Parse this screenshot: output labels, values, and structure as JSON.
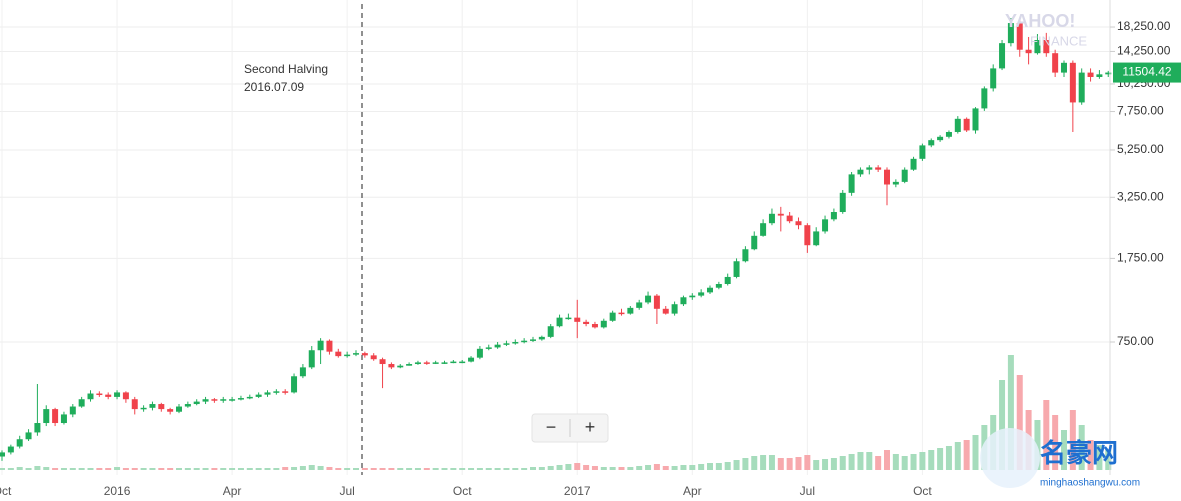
{
  "chart_data": {
    "type": "candlestick",
    "categories": [
      "Oct",
      null,
      null,
      null,
      null,
      null,
      null,
      null,
      null,
      null,
      null,
      null,
      null,
      "2016",
      null,
      null,
      null,
      null,
      null,
      null,
      null,
      null,
      null,
      null,
      null,
      null,
      "Apr",
      null,
      null,
      null,
      null,
      null,
      null,
      null,
      null,
      null,
      null,
      null,
      null,
      "Jul",
      null,
      null,
      null,
      null,
      null,
      null,
      null,
      null,
      null,
      null,
      null,
      null,
      "Oct",
      null,
      null,
      null,
      null,
      null,
      null,
      null,
      null,
      null,
      null,
      null,
      null,
      "2017",
      null,
      null,
      null,
      null,
      null,
      null,
      null,
      null,
      null,
      null,
      null,
      null,
      "Apr",
      null,
      null,
      null,
      null,
      null,
      null,
      null,
      null,
      null,
      null,
      null,
      null,
      "Jul",
      null,
      null,
      null,
      null,
      null,
      null,
      null,
      null,
      null,
      null,
      null,
      null,
      "Oct",
      null,
      null,
      null,
      null,
      null,
      null,
      null,
      null,
      null,
      null,
      null,
      null,
      null,
      null,
      null,
      null,
      null,
      null,
      null,
      null,
      null
    ],
    "open": [
      235,
      245,
      260,
      280,
      300,
      330,
      380,
      330,
      360,
      390,
      420,
      445,
      440,
      430,
      450,
      420,
      380,
      385,
      400,
      380,
      370,
      390,
      400,
      410,
      420,
      415,
      420,
      420,
      425,
      430,
      440,
      450,
      455,
      450,
      530,
      580,
      690,
      760,
      680,
      650,
      660,
      670,
      655,
      630,
      600,
      580,
      590,
      600,
      610,
      605,
      610,
      610,
      615,
      615,
      640,
      700,
      710,
      730,
      740,
      750,
      760,
      770,
      790,
      880,
      960,
      960,
      920,
      900,
      870,
      930,
      1010,
      1000,
      1060,
      1120,
      1200,
      1050,
      1000,
      1100,
      1180,
      1200,
      1240,
      1300,
      1350,
      1450,
      1700,
      1920,
      2200,
      2500,
      2750,
      2700,
      2550,
      2450,
      2000,
      2300,
      2600,
      2800,
      3400,
      4100,
      4300,
      4400,
      4300,
      3700,
      3800,
      4300,
      4800,
      5500,
      5800,
      6000,
      6300,
      7200,
      6400,
      8000,
      9800,
      12000,
      15500,
      19000,
      14500,
      14000,
      16000,
      14000,
      11500,
      12700,
      8500,
      11500,
      11000,
      11300
    ],
    "high": [
      250,
      265,
      290,
      310,
      490,
      395,
      385,
      370,
      400,
      430,
      460,
      455,
      450,
      460,
      455,
      430,
      395,
      410,
      405,
      385,
      400,
      410,
      420,
      430,
      425,
      430,
      430,
      435,
      440,
      450,
      460,
      465,
      465,
      545,
      600,
      720,
      780,
      770,
      700,
      680,
      690,
      680,
      670,
      640,
      610,
      600,
      610,
      620,
      620,
      620,
      620,
      625,
      625,
      650,
      720,
      730,
      750,
      760,
      770,
      780,
      790,
      800,
      900,
      990,
      1000,
      1150,
      940,
      920,
      950,
      1030,
      1050,
      1080,
      1150,
      1250,
      1220,
      1080,
      1130,
      1200,
      1230,
      1280,
      1330,
      1380,
      1500,
      1750,
      1980,
      2300,
      2600,
      2900,
      2950,
      2800,
      2650,
      2500,
      2400,
      2700,
      2900,
      3500,
      4200,
      4400,
      4500,
      4500,
      4400,
      3900,
      4400,
      4900,
      5600,
      5900,
      6100,
      6400,
      7400,
      7300,
      8100,
      10000,
      12500,
      16000,
      20000,
      19500,
      16500,
      17000,
      17200,
      14500,
      13000,
      13000,
      12000,
      12000,
      11800,
      11700
    ],
    "low": [
      225,
      240,
      255,
      275,
      290,
      320,
      320,
      325,
      350,
      385,
      410,
      430,
      420,
      420,
      405,
      360,
      370,
      375,
      370,
      360,
      365,
      385,
      395,
      400,
      405,
      405,
      410,
      415,
      420,
      425,
      430,
      440,
      440,
      445,
      520,
      570,
      600,
      660,
      640,
      640,
      650,
      640,
      620,
      470,
      570,
      575,
      590,
      595,
      595,
      600,
      600,
      605,
      605,
      610,
      630,
      690,
      700,
      720,
      730,
      740,
      750,
      760,
      780,
      870,
      940,
      780,
      880,
      860,
      860,
      920,
      980,
      990,
      1040,
      1100,
      900,
      990,
      980,
      1080,
      1150,
      1180,
      1220,
      1280,
      1330,
      1430,
      1680,
      1900,
      2180,
      2450,
      2300,
      2500,
      2350,
      1850,
      1980,
      2250,
      2550,
      2750,
      3300,
      4000,
      4100,
      4200,
      3000,
      3600,
      3750,
      4250,
      4700,
      5400,
      5700,
      5900,
      6200,
      6300,
      6200,
      7800,
      9500,
      11800,
      15000,
      13500,
      12500,
      13800,
      13500,
      11000,
      11000,
      6300,
      8300,
      10500,
      10800,
      11000
    ],
    "close": [
      245,
      260,
      280,
      300,
      330,
      380,
      330,
      360,
      390,
      420,
      445,
      440,
      430,
      450,
      420,
      380,
      385,
      400,
      380,
      370,
      390,
      400,
      410,
      420,
      415,
      420,
      420,
      425,
      430,
      440,
      450,
      455,
      450,
      530,
      580,
      690,
      760,
      680,
      650,
      660,
      670,
      655,
      630,
      600,
      580,
      590,
      600,
      610,
      605,
      610,
      610,
      615,
      615,
      640,
      700,
      710,
      730,
      740,
      750,
      760,
      770,
      790,
      880,
      960,
      960,
      920,
      900,
      870,
      930,
      1010,
      1000,
      1060,
      1120,
      1200,
      1050,
      1000,
      1100,
      1180,
      1200,
      1240,
      1300,
      1350,
      1450,
      1700,
      1920,
      2200,
      2500,
      2750,
      2700,
      2550,
      2450,
      2000,
      2300,
      2600,
      2800,
      3400,
      4100,
      4300,
      4400,
      4300,
      3700,
      3800,
      4300,
      4800,
      5500,
      5800,
      6000,
      6300,
      7200,
      6400,
      8000,
      9800,
      12000,
      15500,
      19000,
      14500,
      14000,
      16000,
      14000,
      11500,
      12700,
      8500,
      11500,
      11000,
      11300,
      11504.42
    ],
    "volume": [
      2,
      2,
      3,
      2,
      4,
      3,
      2,
      2,
      2,
      2,
      2,
      2,
      2,
      3,
      2,
      2,
      2,
      2,
      2,
      2,
      2,
      2,
      2,
      2,
      2,
      2,
      2,
      2,
      2,
      2,
      2,
      2,
      3,
      3,
      4,
      5,
      4,
      3,
      2,
      2,
      2,
      2,
      2,
      2,
      2,
      2,
      2,
      2,
      2,
      2,
      2,
      2,
      2,
      2,
      2,
      2,
      2,
      2,
      2,
      2,
      3,
      3,
      4,
      5,
      6,
      7,
      5,
      4,
      3,
      3,
      3,
      3,
      4,
      5,
      6,
      4,
      4,
      5,
      5,
      6,
      7,
      7,
      8,
      10,
      12,
      14,
      15,
      15,
      12,
      12,
      13,
      15,
      10,
      11,
      12,
      14,
      16,
      18,
      18,
      14,
      20,
      16,
      14,
      16,
      18,
      20,
      22,
      24,
      28,
      30,
      35,
      45,
      55,
      90,
      115,
      95,
      60,
      50,
      70,
      55,
      40,
      60,
      45,
      30,
      25,
      20
    ],
    "volume_lim": [
      0,
      120
    ],
    "up_color": "#1fad5b",
    "down_color": "#f0424b",
    "up_volume_color": "#a6dcbc",
    "down_volume_color": "#f7a9ad",
    "log_scale": true,
    "grid": true,
    "ylim": [
      205,
      24000
    ],
    "yticks": [
      {
        "value": 750,
        "label": "750.00"
      },
      {
        "value": 1750,
        "label": "1,750.00"
      },
      {
        "value": 3250,
        "label": "3,250.00"
      },
      {
        "value": 5250,
        "label": "5,250.00"
      },
      {
        "value": 7750,
        "label": "7,750.00"
      },
      {
        "value": 10250,
        "label": "10,250.00"
      },
      {
        "value": 14250,
        "label": "14,250.00"
      },
      {
        "value": 18250,
        "label": "18,250.00"
      }
    ],
    "last_price": 11504.42,
    "annotation": [
      "Second Halving",
      "2016.07.09"
    ],
    "zoom_controls": [
      "−",
      "+"
    ],
    "watermarks": [
      "YAHOO!",
      "FINANCE",
      "名豪网",
      "minghaoshangwu.com"
    ]
  }
}
